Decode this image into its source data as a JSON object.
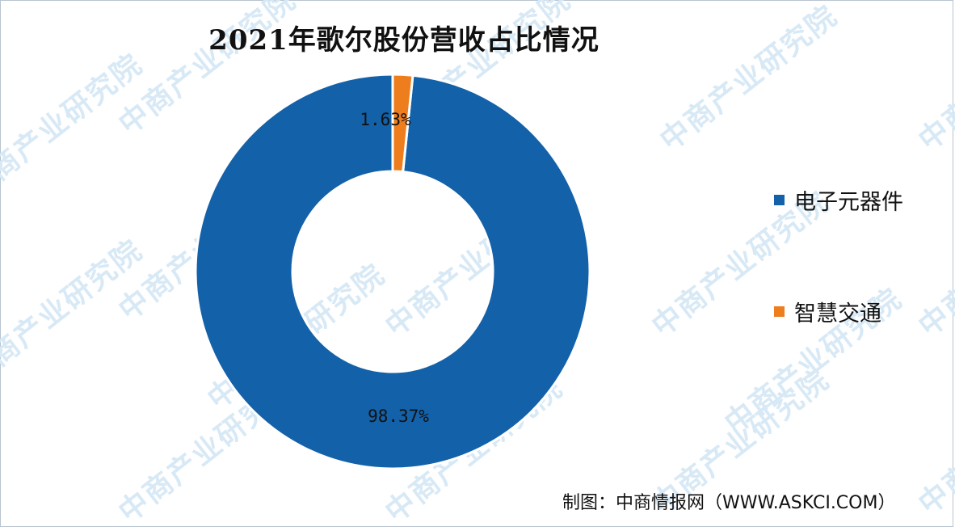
{
  "title": "2021年歌尔股份营收占比情况",
  "credit": "制图：中商情报网（WWW.ASKCI.COM）",
  "watermark": "中商产业研究院",
  "colors": {
    "series_blue": "#1361a8",
    "series_orange": "#ee7d1e",
    "watermark": "#d8e9f6"
  },
  "chart_data": {
    "type": "pie",
    "title": "2021年歌尔股份营收占比情况",
    "variant": "donut",
    "legend_position": "right",
    "slices": [
      {
        "label": "电子元器件",
        "value": 98.37,
        "display": "98.37%",
        "color": "#1361a8"
      },
      {
        "label": "智慧交通",
        "value": 1.63,
        "display": "1.63%",
        "color": "#ee7d1e"
      }
    ]
  }
}
